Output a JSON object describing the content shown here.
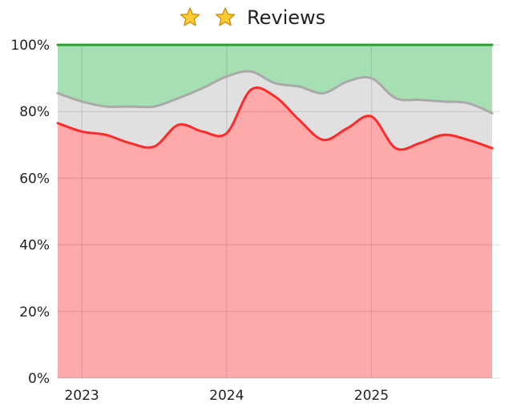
{
  "chart_data": {
    "type": "area",
    "title": "Reviews",
    "title_icons": [
      "star-icon",
      "star-icon"
    ],
    "xlabel": "",
    "ylabel": "",
    "x": [
      "2022-11",
      "2023-01",
      "2023-03",
      "2023-05",
      "2023-07",
      "2023-09",
      "2023-11",
      "2024-01",
      "2024-03",
      "2024-05",
      "2024-07",
      "2024-09",
      "2024-11",
      "2025-01",
      "2025-03",
      "2025-05",
      "2025-07",
      "2025-09",
      "2025-11"
    ],
    "x_ticks": [
      "2023",
      "2024",
      "2025"
    ],
    "x_ticks_positions": [
      "2023-01",
      "2024-01",
      "2025-01"
    ],
    "y_ticks": [
      "0%",
      "20%",
      "40%",
      "60%",
      "80%",
      "100%"
    ],
    "ylim": [
      0,
      100
    ],
    "grid": true,
    "stacked_percent": true,
    "series": [
      {
        "color": "#ff2a2a",
        "fill": "#ffaaaa",
        "values": [
          76.5,
          74,
          73,
          70.5,
          69.5,
          76,
          74,
          73.5,
          86.5,
          84.5,
          77.5,
          71.5,
          75,
          78.5,
          69,
          70.5,
          73,
          71.5,
          69
        ]
      },
      {
        "color": "#aaaaaa",
        "fill": "#e0e0e0",
        "values": [
          9,
          9,
          8.5,
          11,
          12,
          8,
          13,
          17,
          5.5,
          4,
          10,
          14,
          14,
          11.5,
          15,
          13,
          10,
          11,
          10.5
        ]
      },
      {
        "color": "#2ca02c",
        "fill": "#a5dfb2",
        "values": [
          14.5,
          17,
          18.5,
          18.5,
          18.5,
          16,
          13,
          9.5,
          8,
          11.5,
          12.5,
          14.5,
          11,
          10,
          16,
          16.5,
          17,
          17.5,
          20.5
        ]
      }
    ]
  }
}
